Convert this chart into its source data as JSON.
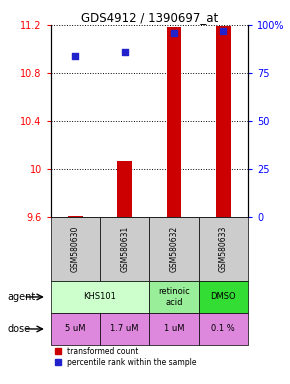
{
  "title": "GDS4912 / 1390697_at",
  "samples": [
    "GSM580630",
    "GSM580631",
    "GSM580632",
    "GSM580633"
  ],
  "bar_values": [
    9.605,
    10.07,
    11.18,
    11.19
  ],
  "bar_base": 9.6,
  "dot_pcts": [
    84,
    86,
    96,
    97
  ],
  "ylim_left": [
    9.6,
    11.2
  ],
  "ylim_right": [
    0,
    100
  ],
  "yticks_left": [
    9.6,
    10.0,
    10.4,
    10.8,
    11.2
  ],
  "ytick_labels_left": [
    "9.6",
    "10",
    "10.4",
    "10.8",
    "11.2"
  ],
  "yticks_right": [
    0,
    25,
    50,
    75,
    100
  ],
  "ytick_labels_right": [
    "0",
    "25",
    "50",
    "75",
    "100%"
  ],
  "agent_info": [
    [
      0,
      2,
      "KHS101",
      "#ccffcc"
    ],
    [
      2,
      3,
      "retinoic\nacid",
      "#99ee99"
    ],
    [
      3,
      4,
      "DMSO",
      "#33dd33"
    ]
  ],
  "dose_info": [
    [
      0,
      1,
      "5 uM"
    ],
    [
      1,
      2,
      "1.7 uM"
    ],
    [
      2,
      3,
      "1 uM"
    ],
    [
      3,
      4,
      "0.1 %"
    ]
  ],
  "dose_color": "#dd88dd",
  "sample_bg_color": "#cccccc",
  "bar_color": "#cc0000",
  "dot_color": "#2222cc",
  "legend_bar_label": "transformed count",
  "legend_dot_label": "percentile rank within the sample"
}
